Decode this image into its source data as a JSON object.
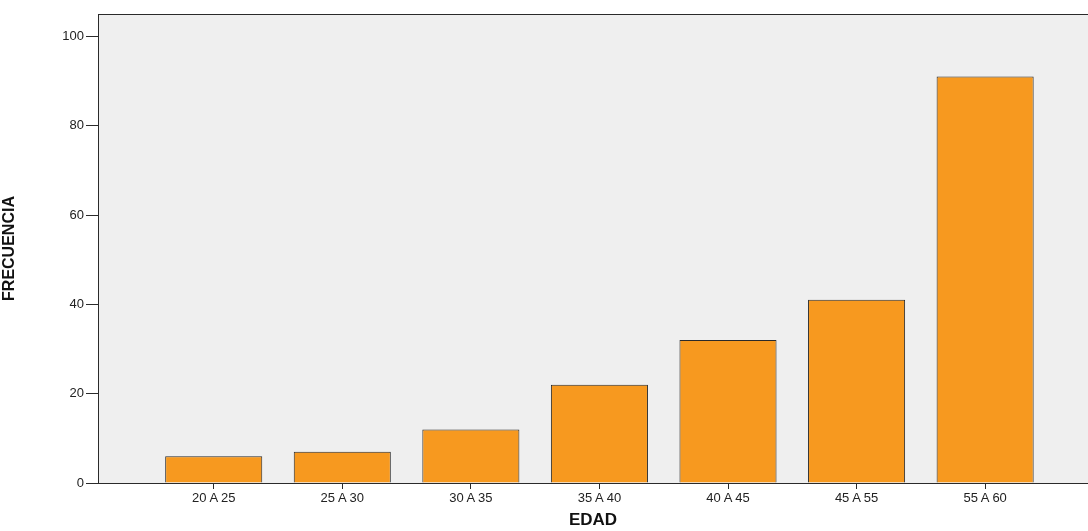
{
  "chart_data": {
    "type": "bar",
    "xlabel": "EDAD",
    "ylabel": "FRECUENCIA",
    "categories": [
      "20 A 25",
      "25 A 30",
      "30 A 35",
      "35 A 40",
      "40 A 45",
      "45 A 55",
      "55 A 60"
    ],
    "values": [
      6,
      7,
      12,
      22,
      32,
      41,
      91
    ],
    "color": "#f7991f",
    "ylim": [
      0,
      105
    ],
    "yticks": [
      0,
      20,
      40,
      60,
      80,
      100
    ]
  }
}
